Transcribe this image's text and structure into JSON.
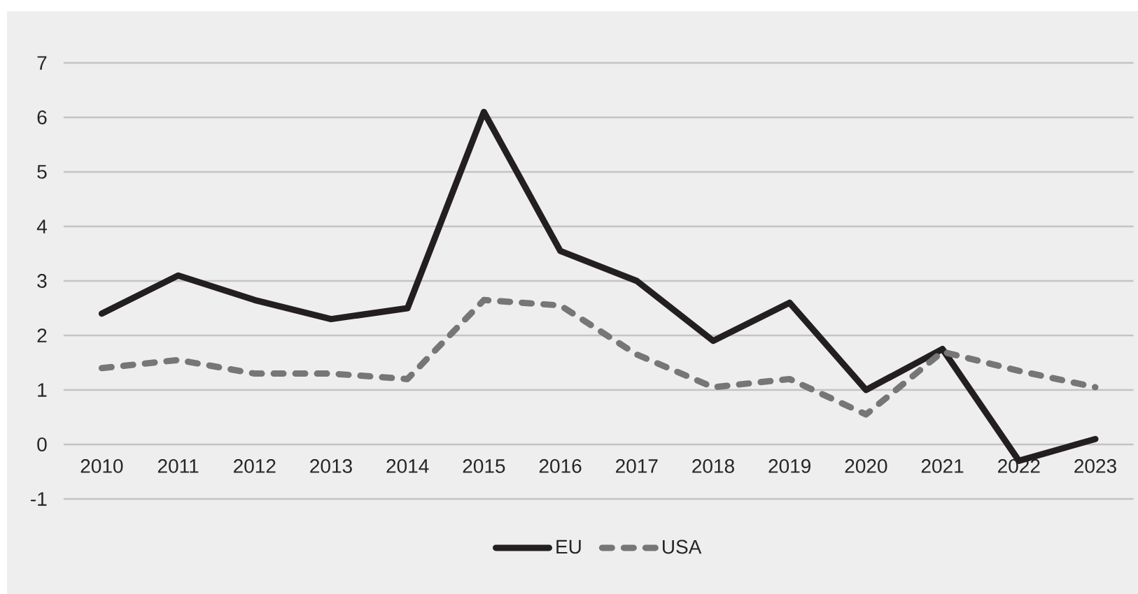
{
  "chart_data": {
    "type": "line",
    "categories": [
      "2010",
      "2011",
      "2012",
      "2013",
      "2014",
      "2015",
      "2016",
      "2017",
      "2018",
      "2019",
      "2020",
      "2021",
      "2022",
      "2023"
    ],
    "series": [
      {
        "name": "EU",
        "color": "#231f20",
        "line_style": "solid",
        "values": [
          2.4,
          3.1,
          2.65,
          2.3,
          2.5,
          6.1,
          3.55,
          3.0,
          1.9,
          2.6,
          1.0,
          1.75,
          -0.3,
          0.1
        ]
      },
      {
        "name": "USA",
        "color": "#767676",
        "line_style": "dashed",
        "values": [
          1.4,
          1.55,
          1.3,
          1.3,
          1.2,
          2.65,
          2.55,
          1.65,
          1.05,
          1.2,
          0.55,
          1.7,
          1.35,
          1.05
        ]
      }
    ],
    "ylim": [
      -1,
      7
    ],
    "yticks": [
      -1,
      0,
      1,
      2,
      3,
      4,
      5,
      6,
      7
    ],
    "grid": "y",
    "legend": "bottom"
  }
}
